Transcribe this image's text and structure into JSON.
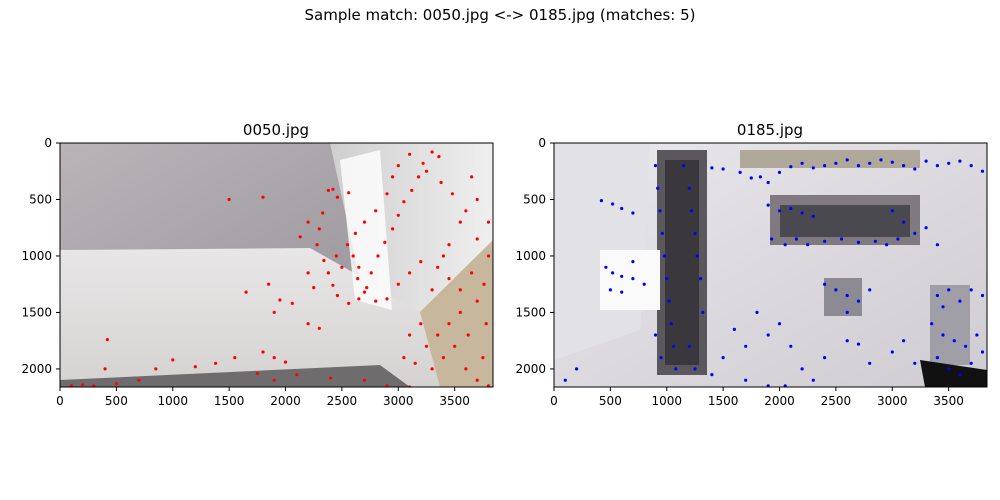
{
  "figure": {
    "title": "Sample match: 0050.jpg <-> 0185.jpg (matches: 5)"
  },
  "chart_data": [
    {
      "type": "scatter",
      "title": "0050.jpg",
      "image_description": "photo of a white hallway ceiling with doorway, keypoints overlaid",
      "xlim": [
        0,
        3840
      ],
      "ylim": [
        2160,
        0
      ],
      "xticks": [
        0,
        500,
        1000,
        1500,
        2000,
        2500,
        3000,
        3500
      ],
      "yticks": [
        0,
        500,
        1000,
        1500,
        2000
      ],
      "marker_color": "#ff0000",
      "series": [
        {
          "points": [
            [
              2380,
              420
            ],
            [
              2420,
              410
            ],
            [
              2560,
              440
            ],
            [
              2460,
              480
            ],
            [
              2330,
              620
            ],
            [
              2300,
              760
            ],
            [
              2280,
              900
            ],
            [
              2340,
              1040
            ],
            [
              2380,
              1150
            ],
            [
              2420,
              1260
            ],
            [
              2460,
              1350
            ],
            [
              2560,
              1420
            ],
            [
              2650,
              1380
            ],
            [
              2720,
              1280
            ],
            [
              2760,
              1150
            ],
            [
              2820,
              1000
            ],
            [
              2880,
              880
            ],
            [
              2950,
              760
            ],
            [
              3000,
              640
            ],
            [
              3050,
              520
            ],
            [
              3120,
              420
            ],
            [
              3180,
              300
            ],
            [
              3220,
              180
            ],
            [
              3300,
              80
            ],
            [
              3360,
              120
            ],
            [
              2550,
              900
            ],
            [
              2600,
              1000
            ],
            [
              2500,
              1100
            ],
            [
              2450,
              1000
            ],
            [
              2640,
              1200
            ],
            [
              2700,
              1320
            ],
            [
              2800,
              1400
            ],
            [
              2900,
              1380
            ],
            [
              3000,
              1250
            ],
            [
              3100,
              1150
            ],
            [
              3200,
              1050
            ],
            [
              3350,
              1100
            ],
            [
              3450,
              1200
            ],
            [
              3550,
              1300
            ],
            [
              3650,
              1150
            ],
            [
              3700,
              1400
            ],
            [
              3780,
              1600
            ],
            [
              3620,
              1700
            ],
            [
              3500,
              1800
            ],
            [
              3400,
              1900
            ],
            [
              3300,
              2000
            ],
            [
              3600,
              2000
            ],
            [
              3750,
              1900
            ],
            [
              3800,
              700
            ],
            [
              3700,
              500
            ],
            [
              3650,
              300
            ],
            [
              3550,
              700
            ],
            [
              3450,
              900
            ],
            [
              3400,
              1000
            ],
            [
              3300,
              1300
            ],
            [
              3200,
              1600
            ],
            [
              3100,
              1700
            ],
            [
              3050,
              1900
            ],
            [
              1500,
              500
            ],
            [
              1800,
              480
            ],
            [
              2130,
              830
            ],
            [
              2200,
              700
            ],
            [
              1650,
              1320
            ],
            [
              1850,
              1250
            ],
            [
              1950,
              1390
            ],
            [
              2060,
              1420
            ],
            [
              1900,
              1500
            ],
            [
              2200,
              1600
            ],
            [
              2300,
              1640
            ],
            [
              1800,
              1850
            ],
            [
              1900,
              1900
            ],
            [
              2000,
              1940
            ],
            [
              1550,
              1900
            ],
            [
              1380,
              1950
            ],
            [
              1200,
              1980
            ],
            [
              1000,
              1920
            ],
            [
              850,
              2000
            ],
            [
              700,
              2100
            ],
            [
              500,
              2130
            ],
            [
              420,
              1740
            ],
            [
              400,
              2000
            ],
            [
              300,
              2150
            ],
            [
              200,
              2140
            ],
            [
              100,
              2150
            ],
            [
              1750,
              2040
            ],
            [
              1900,
              2100
            ],
            [
              2100,
              2050
            ],
            [
              2400,
              2080
            ],
            [
              2700,
              2100
            ],
            [
              2900,
              2150
            ],
            [
              3100,
              2160
            ],
            [
              2200,
              1150
            ],
            [
              2250,
              1280
            ],
            [
              2650,
              1100
            ],
            [
              2620,
              800
            ],
            [
              2700,
              700
            ],
            [
              2800,
              600
            ],
            [
              2900,
              450
            ],
            [
              2950,
              300
            ],
            [
              3000,
              200
            ],
            [
              3100,
              100
            ],
            [
              3250,
              250
            ],
            [
              3380,
              350
            ],
            [
              3480,
              450
            ],
            [
              3600,
              600
            ],
            [
              3700,
              850
            ],
            [
              3800,
              1000
            ],
            [
              3760,
              1250
            ],
            [
              3550,
              1500
            ],
            [
              3450,
              1600
            ],
            [
              3350,
              1700
            ],
            [
              3250,
              1800
            ],
            [
              3150,
              1950
            ],
            [
              3700,
              2100
            ],
            [
              3800,
              2150
            ]
          ]
        }
      ]
    },
    {
      "type": "scatter",
      "title": "0185.jpg",
      "image_description": "photo of a hallway ceiling with recessed lights and vents, keypoints overlaid",
      "xlim": [
        0,
        3840
      ],
      "ylim": [
        2160,
        0
      ],
      "xticks": [
        0,
        500,
        1000,
        1500,
        2000,
        2500,
        3000,
        3500
      ],
      "yticks": [
        0,
        500,
        1000,
        1500,
        2000
      ],
      "marker_color": "#0000ff",
      "series": [
        {
          "points": [
            [
              420,
              510
            ],
            [
              520,
              540
            ],
            [
              600,
              580
            ],
            [
              700,
              620
            ],
            [
              460,
              1100
            ],
            [
              520,
              1150
            ],
            [
              600,
              1180
            ],
            [
              700,
              1200
            ],
            [
              800,
              1250
            ],
            [
              500,
              1300
            ],
            [
              600,
              1320
            ],
            [
              700,
              1050
            ],
            [
              900,
              200
            ],
            [
              920,
              400
            ],
            [
              940,
              600
            ],
            [
              960,
              800
            ],
            [
              980,
              1000
            ],
            [
              1000,
              1200
            ],
            [
              1020,
              1400
            ],
            [
              1040,
              1600
            ],
            [
              1060,
              1800
            ],
            [
              1080,
              2000
            ],
            [
              900,
              1700
            ],
            [
              950,
              1900
            ],
            [
              1150,
              200
            ],
            [
              1200,
              400
            ],
            [
              1220,
              600
            ],
            [
              1250,
              800
            ],
            [
              1270,
              1000
            ],
            [
              1300,
              1200
            ],
            [
              1320,
              1500
            ],
            [
              1200,
              1800
            ],
            [
              1250,
              2000
            ],
            [
              1400,
              220
            ],
            [
              1500,
              230
            ],
            [
              1650,
              260
            ],
            [
              1750,
              310
            ],
            [
              1830,
              300
            ],
            [
              1900,
              350
            ],
            [
              2000,
              260
            ],
            [
              2100,
              210
            ],
            [
              2200,
              180
            ],
            [
              2300,
              220
            ],
            [
              2400,
              200
            ],
            [
              2500,
              180
            ],
            [
              2600,
              150
            ],
            [
              2700,
              200
            ],
            [
              2800,
              180
            ],
            [
              2900,
              150
            ],
            [
              3000,
              170
            ],
            [
              3100,
              200
            ],
            [
              3200,
              230
            ],
            [
              3300,
              160
            ],
            [
              3400,
              200
            ],
            [
              3500,
              180
            ],
            [
              3600,
              160
            ],
            [
              3700,
              200
            ],
            [
              3800,
              250
            ],
            [
              1900,
              550
            ],
            [
              2000,
              600
            ],
            [
              2100,
              580
            ],
            [
              2200,
              620
            ],
            [
              2300,
              650
            ],
            [
              3000,
              600
            ],
            [
              3100,
              700
            ],
            [
              3200,
              800
            ],
            [
              3300,
              750
            ],
            [
              3400,
              900
            ],
            [
              1930,
              850
            ],
            [
              2050,
              900
            ],
            [
              2150,
              850
            ],
            [
              2250,
              900
            ],
            [
              2400,
              870
            ],
            [
              2550,
              850
            ],
            [
              2700,
              880
            ],
            [
              2850,
              870
            ],
            [
              2950,
              900
            ],
            [
              3050,
              850
            ],
            [
              2400,
              1250
            ],
            [
              2500,
              1300
            ],
            [
              2600,
              1350
            ],
            [
              2700,
              1400
            ],
            [
              2800,
              1300
            ],
            [
              2600,
              1500
            ],
            [
              3400,
              1350
            ],
            [
              3450,
              1450
            ],
            [
              3500,
              1300
            ],
            [
              3600,
              1400
            ],
            [
              3700,
              1300
            ],
            [
              3800,
              1350
            ],
            [
              3350,
              1600
            ],
            [
              3450,
              1700
            ],
            [
              3550,
              1750
            ],
            [
              3650,
              1800
            ],
            [
              3750,
              1700
            ],
            [
              3400,
              1900
            ],
            [
              3500,
              2000
            ],
            [
              3600,
              2050
            ],
            [
              3700,
              1950
            ],
            [
              3800,
              1850
            ],
            [
              1600,
              1650
            ],
            [
              1700,
              1800
            ],
            [
              1800,
              1500
            ],
            [
              1900,
              1700
            ],
            [
              2000,
              1600
            ],
            [
              2100,
              1800
            ],
            [
              2200,
              2000
            ],
            [
              2300,
              2100
            ],
            [
              2400,
              1900
            ],
            [
              2600,
              1750
            ],
            [
              2700,
              1780
            ],
            [
              2800,
              1950
            ],
            [
              1500,
              1900
            ],
            [
              1400,
              2050
            ],
            [
              1700,
              2100
            ],
            [
              1900,
              2150
            ],
            [
              2050,
              2150
            ],
            [
              100,
              2100
            ],
            [
              200,
              2000
            ],
            [
              3000,
              1850
            ],
            [
              3100,
              1750
            ],
            [
              3200,
              1950
            ]
          ]
        }
      ]
    }
  ]
}
